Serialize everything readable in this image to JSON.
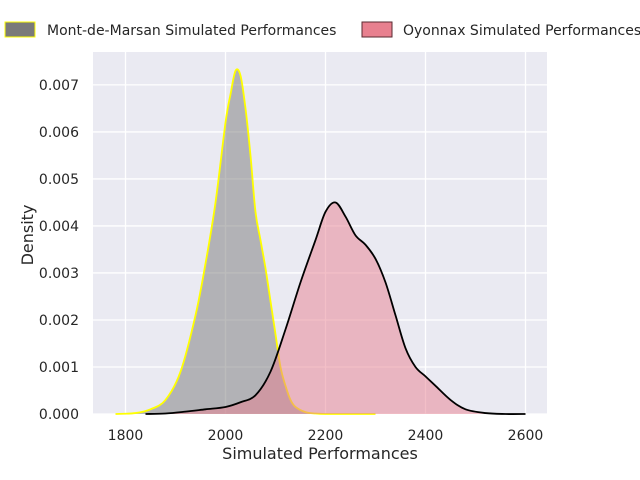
{
  "chart_data": {
    "type": "area",
    "xlabel": "Simulated Performances",
    "ylabel": "Density",
    "xlim": [
      1735,
      2643
    ],
    "ylim": [
      0,
      0.0077
    ],
    "x_ticks": [
      1800,
      2000,
      2200,
      2400,
      2600
    ],
    "y_ticks": [
      0.0,
      0.001,
      0.002,
      0.003,
      0.004,
      0.005,
      0.006,
      0.007
    ],
    "x_tick_labels": [
      "1800",
      "2000",
      "2200",
      "2400",
      "2600"
    ],
    "y_tick_labels": [
      "0.000",
      "0.001",
      "0.002",
      "0.003",
      "0.004",
      "0.005",
      "0.006",
      "0.007"
    ],
    "grid": true,
    "legend_position": "top, outside plot",
    "series": [
      {
        "name": "Mont-de-Marsan Simulated Performances",
        "fill": "#7a7a7a",
        "line": "#ffff00",
        "x": [
          1780,
          1820,
          1850,
          1880,
          1910,
          1940,
          1960,
          1980,
          2000,
          2010,
          2020,
          2030,
          2040,
          2050,
          2060,
          2070,
          2080,
          2090,
          2100,
          2110,
          2120,
          2130,
          2140,
          2160,
          2180,
          2200,
          2250,
          2300
        ],
        "y": [
          0.0,
          2e-05,
          0.0001,
          0.0003,
          0.0009,
          0.0021,
          0.0032,
          0.0045,
          0.0062,
          0.0068,
          0.0073,
          0.0072,
          0.0065,
          0.0055,
          0.0043,
          0.0037,
          0.0031,
          0.0024,
          0.0017,
          0.001,
          0.0006,
          0.0003,
          0.00015,
          4e-05,
          1e-05,
          0.0,
          0.0,
          0.0
        ]
      },
      {
        "name": "Oyonnax Simulated Performances",
        "fill": "#e8808f",
        "line": "#000000",
        "x": [
          1840,
          1880,
          1920,
          1960,
          2000,
          2030,
          2060,
          2090,
          2120,
          2150,
          2180,
          2200,
          2220,
          2240,
          2260,
          2280,
          2300,
          2320,
          2340,
          2360,
          2380,
          2400,
          2420,
          2450,
          2480,
          2520,
          2560,
          2600
        ],
        "y": [
          0.0,
          1e-05,
          5e-05,
          0.0001,
          0.00015,
          0.00025,
          0.0004,
          0.0009,
          0.0018,
          0.0028,
          0.0037,
          0.0043,
          0.0045,
          0.0042,
          0.0038,
          0.0036,
          0.0033,
          0.0028,
          0.0021,
          0.0014,
          0.001,
          0.0008,
          0.0006,
          0.0003,
          0.0001,
          2e-05,
          0.0,
          0.0
        ]
      }
    ]
  }
}
